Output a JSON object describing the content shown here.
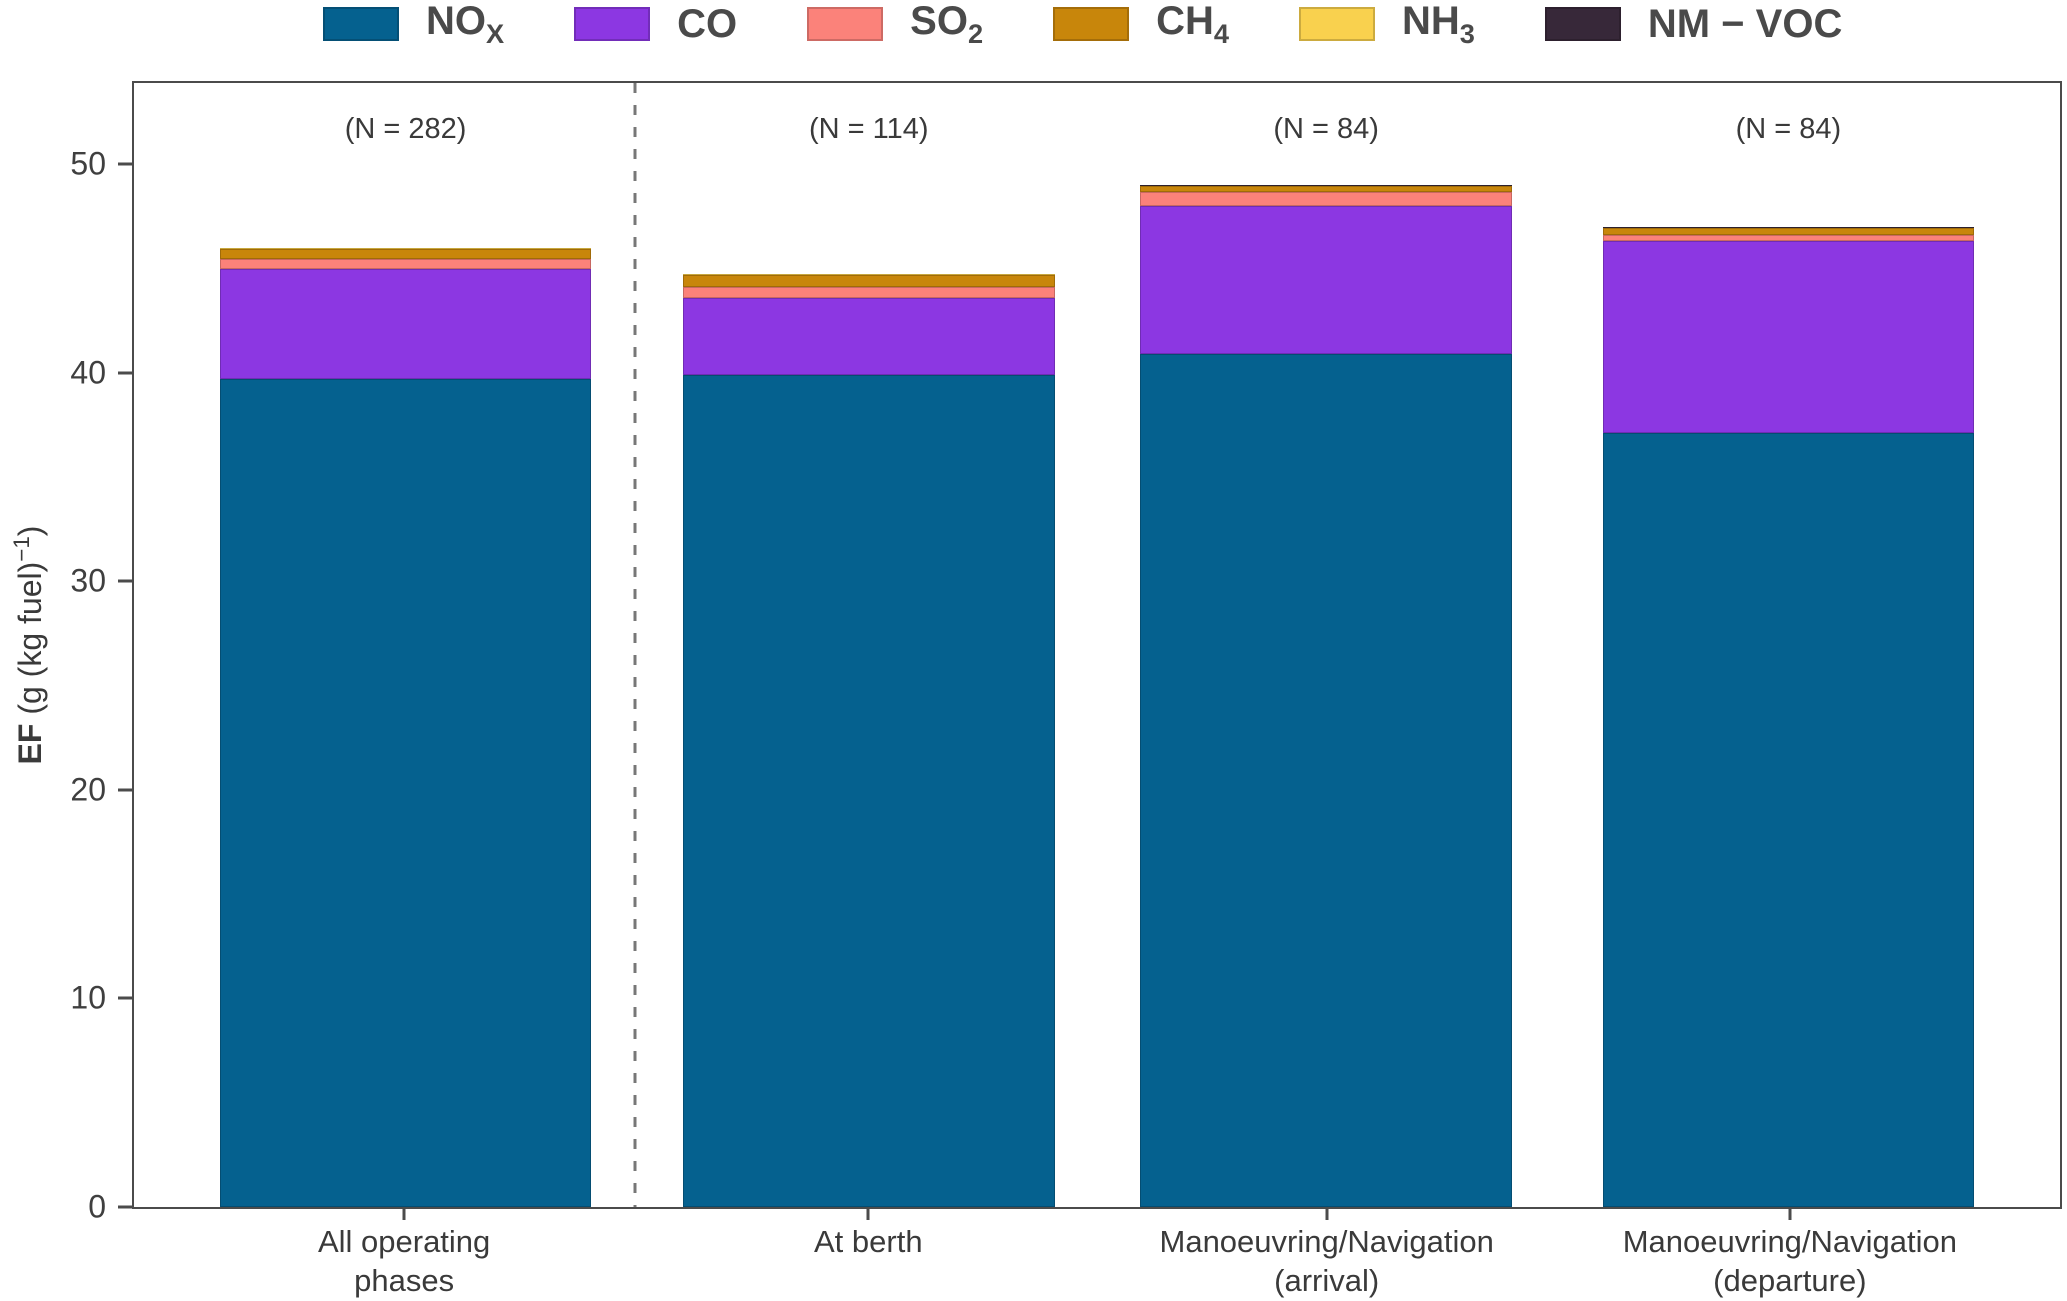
{
  "legend": {
    "items": [
      {
        "id": "nox",
        "label": "NO",
        "sub": "X",
        "color": "#05618F"
      },
      {
        "id": "co",
        "label": "CO",
        "sub": "",
        "color": "#8C37E2"
      },
      {
        "id": "so2",
        "label": "SO",
        "sub": "2",
        "color": "#FB827A"
      },
      {
        "id": "ch4",
        "label": "CH",
        "sub": "4",
        "color": "#C8860B"
      },
      {
        "id": "nh3",
        "label": "NH",
        "sub": "3",
        "color": "#F9D14E"
      },
      {
        "id": "nmvoc",
        "label": "NM − VOC",
        "sub": "",
        "color": "#372839"
      }
    ]
  },
  "y_axis": {
    "label_bold": "EF",
    "label_rest": " (g (kg fuel)",
    "label_sup": "−1",
    "label_close": ")",
    "tick_values": [
      0,
      10,
      20,
      30,
      40,
      50
    ]
  },
  "chart_data": {
    "type": "bar",
    "stacked": true,
    "title": "",
    "xlabel": "",
    "ylabel": "EF (g (kg fuel)⁻¹)",
    "ylim": [
      0,
      53.9
    ],
    "grid": false,
    "legend_position": "top",
    "categories": [
      [
        "All operating",
        "phases"
      ],
      [
        "At berth"
      ],
      [
        "Manoeuvring/Navigation",
        "(arrival)"
      ],
      [
        "Manoeuvring/Navigation",
        "(departure)"
      ]
    ],
    "annotations": [
      "(N = 282)",
      "(N = 114)",
      "(N = 84)",
      "(N = 84)"
    ],
    "series": [
      {
        "name": "NOx",
        "color": "#05618F",
        "values": [
          39.7,
          39.9,
          40.9,
          37.1
        ]
      },
      {
        "name": "CO",
        "color": "#8C37E2",
        "values": [
          5.3,
          3.7,
          7.1,
          9.2
        ]
      },
      {
        "name": "SO2",
        "color": "#FB827A",
        "values": [
          0.45,
          0.5,
          0.65,
          0.33
        ]
      },
      {
        "name": "CH4",
        "color": "#C8860B",
        "values": [
          0.5,
          0.6,
          0.3,
          0.32
        ]
      },
      {
        "name": "NH3",
        "color": "#F9D14E",
        "values": [
          0.02,
          0.02,
          0.02,
          0.02
        ]
      },
      {
        "name": "NM-VOC",
        "color": "#372839",
        "values": [
          0.02,
          0.02,
          0.02,
          0.02
        ]
      }
    ],
    "totals": [
      45.95,
      44.7,
      48.95,
      46.95
    ],
    "layout": {
      "bar_centers_pct": [
        14.1,
        38.15,
        61.9,
        85.9
      ],
      "bar_width_pct": 19.3,
      "separator_x_pct": 26.0
    }
  }
}
